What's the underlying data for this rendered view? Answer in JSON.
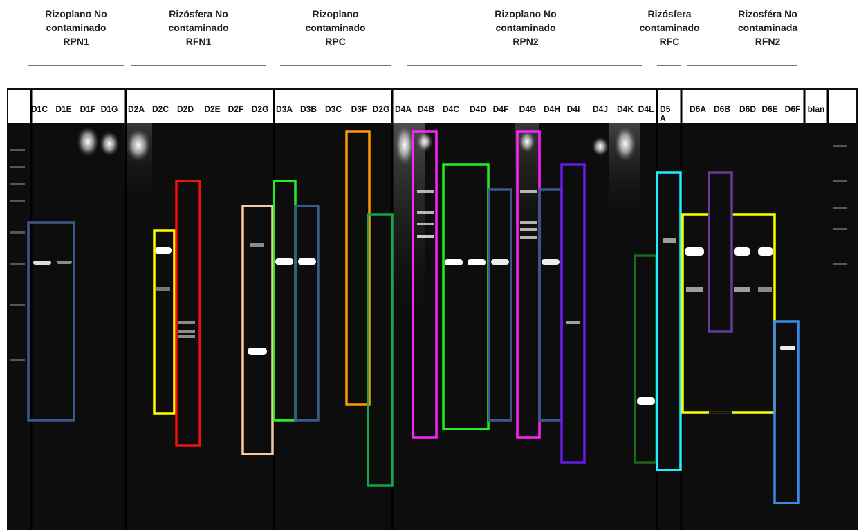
{
  "groups": [
    {
      "lines": [
        "Rizoplano No",
        "contaminado",
        "RPN1"
      ]
    },
    {
      "lines": [
        "Rizósfera No",
        "contaminado",
        "RFN1"
      ]
    },
    {
      "lines": [
        "Rizoplano",
        "contaminado",
        "RPC"
      ]
    },
    {
      "lines": [
        "Rizoplano No",
        "contaminado",
        "RPN2"
      ]
    },
    {
      "lines": [
        "Rizósfera",
        "contaminado",
        "RFC"
      ]
    },
    {
      "lines": [
        "Rizosféra No",
        "contaminada",
        "RFN2"
      ]
    }
  ],
  "lanes": [
    "D1C",
    "D1E",
    "D1F",
    "D1G",
    "D2A",
    "D2C",
    "D2D",
    "D2E",
    "D2F",
    "D2G",
    "D3A",
    "D3B",
    "D3C",
    "D3F",
    "D2G",
    "D4A",
    "D4B",
    "D4C",
    "D4D",
    "D4F",
    "D4G",
    "D4H",
    "D4I",
    "D4J",
    "D4K",
    "D4L",
    "D5 A",
    "D6A",
    "D6B",
    "D6D",
    "D6E",
    "D6F",
    "blan"
  ]
}
